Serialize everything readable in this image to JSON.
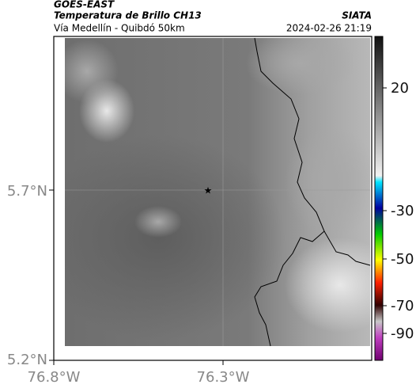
{
  "header": {
    "source": "GOES-EAST",
    "title": "Temperatura de Brillo CH13",
    "subtitle": "Vía Medellín - Quibdó 50km",
    "agency": "SIATA",
    "datetime": "2024-02-26 21:19"
  },
  "map": {
    "lat_ticks": [
      "5.7°N",
      "5.2°N"
    ],
    "lon_ticks": [
      "76.8°W",
      "76.3°W"
    ]
  },
  "colorbar": {
    "ticks": [
      20,
      -30,
      -50,
      -70,
      -90
    ]
  }
}
